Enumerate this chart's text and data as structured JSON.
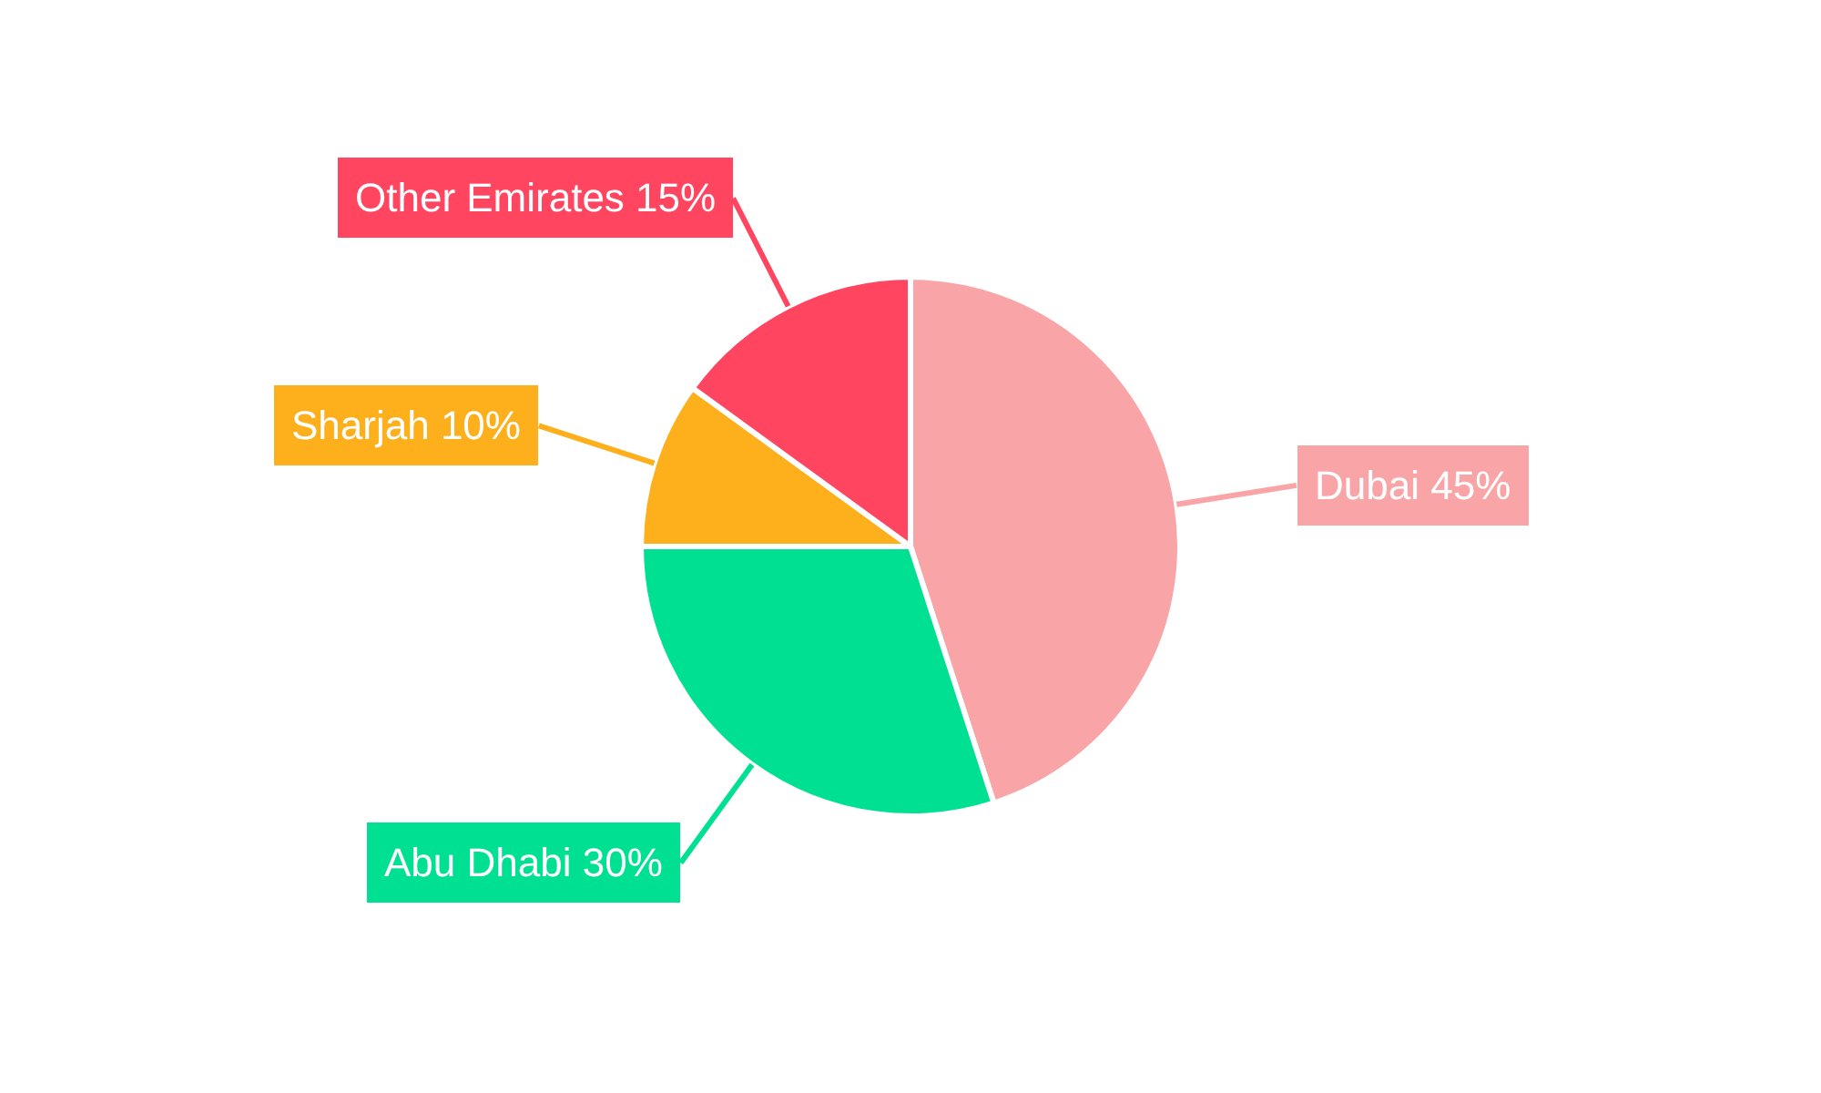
{
  "chart_data": {
    "type": "pie",
    "categories": [
      "Dubai",
      "Abu Dhabi",
      "Sharjah",
      "Other Emirates"
    ],
    "values": [
      45,
      30,
      10,
      15
    ],
    "value_labels": [
      "45%",
      "30%",
      "10%",
      "15%"
    ],
    "colors": [
      "#f9a5a7",
      "#00e092",
      "#fdb01b",
      "#ff4560"
    ],
    "legend": false
  }
}
